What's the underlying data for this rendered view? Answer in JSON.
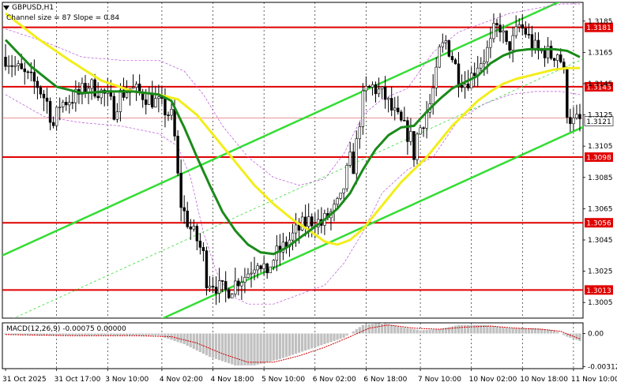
{
  "header": {
    "symbol_label": "GBPUSD,H1",
    "channel_info": "Channel size = 87 Slope = 0.84",
    "macd_label": "MACD(12,26,9) -0.00075 0.00000"
  },
  "colors": {
    "candle": "#000000",
    "level_line": "#e00000",
    "level_label_bg": "#e00000",
    "channel": "#33dd33",
    "ma_fast": "#1a8a1a",
    "ma_slow": "#f2ee1a",
    "envelope": "#b84fd6",
    "grid": "#000000",
    "macd_hist": "#c0c0c0",
    "macd_signal": "#d00000"
  },
  "chart_data": {
    "type": "candlestick",
    "symbol": "GBPUSD",
    "timeframe": "H1",
    "ylim": [
      1.2995,
      1.3197
    ],
    "y_ticks": [
      "1.3185",
      "1.3165",
      "1.3145",
      "1.3125",
      "1.3105",
      "1.3085",
      "1.3065",
      "1.3045",
      "1.3025",
      "1.3005"
    ],
    "x_ticks": [
      "31 Oct 2025",
      "31 Oct 17:00",
      "3 Nov 10:00",
      "4 Nov 02:00",
      "4 Nov 18:00",
      "5 Nov 10:00",
      "6 Nov 02:00",
      "6 Nov 18:00",
      "7 Nov 10:00",
      "10 Nov 02:00",
      "10 Nov 18:00",
      "11 Nov 10:00"
    ],
    "levels": [
      {
        "price": 1.3181,
        "label": "1.3181"
      },
      {
        "price": 1.3143,
        "label": "1.3143"
      },
      {
        "price": 1.3098,
        "label": "1.3098"
      },
      {
        "price": 1.3056,
        "label": "1.3056"
      },
      {
        "price": 1.3013,
        "label": "1.3013"
      }
    ],
    "current_price": {
      "price": 1.3121,
      "label": "1.3121"
    },
    "channel": {
      "lower": [
        [
          0,
          1.2949
        ],
        [
          185,
          1.3121
        ]
      ],
      "width": 0.0087
    },
    "close_path": [
      [
        0,
        1.3162
      ],
      [
        5,
        1.3152
      ],
      [
        10,
        1.3144
      ],
      [
        13,
        1.3133
      ],
      [
        15,
        1.3118
      ],
      [
        17,
        1.3132
      ],
      [
        20,
        1.3135
      ],
      [
        23,
        1.3138
      ],
      [
        26,
        1.3144
      ],
      [
        29,
        1.3141
      ],
      [
        32,
        1.3136
      ],
      [
        34,
        1.3128
      ],
      [
        36,
        1.3138
      ],
      [
        39,
        1.3142
      ],
      [
        41,
        1.314
      ],
      [
        43,
        1.3138
      ],
      [
        45,
        1.3136
      ],
      [
        48,
        1.3132
      ],
      [
        50,
        1.3128
      ],
      [
        52,
        1.3124
      ],
      [
        53,
        1.311
      ],
      [
        54,
        1.3085
      ],
      [
        55,
        1.3068
      ],
      [
        56,
        1.3062
      ],
      [
        58,
        1.3052
      ],
      [
        60,
        1.3045
      ],
      [
        62,
        1.3035
      ],
      [
        63,
        1.302
      ],
      [
        65,
        1.3018
      ],
      [
        67,
        1.3014
      ],
      [
        69,
        1.3012
      ],
      [
        71,
        1.3015
      ],
      [
        73,
        1.302
      ],
      [
        75,
        1.3022
      ],
      [
        77,
        1.3027
      ],
      [
        79,
        1.3033
      ],
      [
        81,
        1.3028
      ],
      [
        82,
        1.3018
      ],
      [
        83,
        1.303
      ],
      [
        85,
        1.3036
      ],
      [
        87,
        1.304
      ],
      [
        89,
        1.3045
      ],
      [
        91,
        1.305
      ],
      [
        93,
        1.3054
      ],
      [
        95,
        1.3057
      ],
      [
        97,
        1.3058
      ],
      [
        99,
        1.3055
      ],
      [
        101,
        1.306
      ],
      [
        103,
        1.3064
      ],
      [
        105,
        1.307
      ],
      [
        107,
        1.3088
      ],
      [
        108,
        1.3096
      ],
      [
        109,
        1.3092
      ],
      [
        110,
        1.3106
      ],
      [
        111,
        1.3122
      ],
      [
        112,
        1.3135
      ],
      [
        113,
        1.314
      ],
      [
        115,
        1.3143
      ],
      [
        117,
        1.314
      ],
      [
        119,
        1.3136
      ],
      [
        121,
        1.3128
      ],
      [
        123,
        1.3122
      ],
      [
        125,
        1.3116
      ],
      [
        127,
        1.311
      ],
      [
        128,
        1.31
      ],
      [
        129,
        1.3112
      ],
      [
        131,
        1.3122
      ],
      [
        133,
        1.3132
      ],
      [
        135,
        1.315
      ],
      [
        136,
        1.3165
      ],
      [
        138,
        1.3172
      ],
      [
        140,
        1.3162
      ],
      [
        142,
        1.315
      ],
      [
        144,
        1.3146
      ],
      [
        146,
        1.315
      ],
      [
        148,
        1.3158
      ],
      [
        150,
        1.3162
      ],
      [
        152,
        1.317
      ],
      [
        153,
        1.3178
      ],
      [
        155,
        1.3182
      ],
      [
        156,
        1.3175
      ],
      [
        157,
        1.3168
      ],
      [
        159,
        1.3172
      ],
      [
        161,
        1.3182
      ],
      [
        163,
        1.3178
      ],
      [
        165,
        1.317
      ],
      [
        167,
        1.3165
      ],
      [
        169,
        1.3166
      ],
      [
        171,
        1.3163
      ],
      [
        173,
        1.3165
      ],
      [
        174,
        1.316
      ],
      [
        175,
        1.315
      ],
      [
        176,
        1.3128
      ],
      [
        177,
        1.3123
      ],
      [
        178,
        1.312
      ],
      [
        179,
        1.3121
      ]
    ],
    "ma_fast_path": [
      [
        0,
        1.3173
      ],
      [
        8,
        1.3156
      ],
      [
        16,
        1.3143
      ],
      [
        24,
        1.3139
      ],
      [
        32,
        1.314
      ],
      [
        40,
        1.314
      ],
      [
        48,
        1.3138
      ],
      [
        52,
        1.3134
      ],
      [
        56,
        1.3117
      ],
      [
        60,
        1.3098
      ],
      [
        64,
        1.308
      ],
      [
        68,
        1.3063
      ],
      [
        72,
        1.3051
      ],
      [
        76,
        1.3042
      ],
      [
        80,
        1.3037
      ],
      [
        84,
        1.3036
      ],
      [
        88,
        1.304
      ],
      [
        92,
        1.3046
      ],
      [
        96,
        1.3052
      ],
      [
        100,
        1.3058
      ],
      [
        104,
        1.3065
      ],
      [
        108,
        1.3075
      ],
      [
        112,
        1.309
      ],
      [
        116,
        1.3103
      ],
      [
        120,
        1.3112
      ],
      [
        124,
        1.3117
      ],
      [
        128,
        1.3118
      ],
      [
        132,
        1.3127
      ],
      [
        136,
        1.3135
      ],
      [
        140,
        1.3142
      ],
      [
        144,
        1.3146
      ],
      [
        148,
        1.315
      ],
      [
        152,
        1.3158
      ],
      [
        156,
        1.3163
      ],
      [
        160,
        1.3166
      ],
      [
        164,
        1.3167
      ],
      [
        168,
        1.3167
      ],
      [
        172,
        1.3167
      ],
      [
        176,
        1.3166
      ],
      [
        180,
        1.3162
      ]
    ],
    "ma_slow_path": [
      [
        0,
        1.319
      ],
      [
        10,
        1.3174
      ],
      [
        20,
        1.316
      ],
      [
        30,
        1.3147
      ],
      [
        40,
        1.314
      ],
      [
        48,
        1.3138
      ],
      [
        54,
        1.3135
      ],
      [
        60,
        1.3125
      ],
      [
        66,
        1.311
      ],
      [
        72,
        1.3095
      ],
      [
        78,
        1.308
      ],
      [
        84,
        1.3068
      ],
      [
        90,
        1.3058
      ],
      [
        96,
        1.305
      ],
      [
        100,
        1.3044
      ],
      [
        104,
        1.3042
      ],
      [
        108,
        1.3045
      ],
      [
        112,
        1.3052
      ],
      [
        116,
        1.3062
      ],
      [
        120,
        1.3072
      ],
      [
        124,
        1.3082
      ],
      [
        128,
        1.309
      ],
      [
        132,
        1.3098
      ],
      [
        136,
        1.3108
      ],
      [
        140,
        1.3118
      ],
      [
        144,
        1.3126
      ],
      [
        148,
        1.3134
      ],
      [
        152,
        1.314
      ],
      [
        156,
        1.3145
      ],
      [
        160,
        1.3148
      ],
      [
        164,
        1.315
      ],
      [
        168,
        1.3152
      ],
      [
        172,
        1.3154
      ],
      [
        176,
        1.3155
      ],
      [
        180,
        1.3155
      ]
    ],
    "envelope_upper": [
      [
        0,
        1.318
      ],
      [
        12,
        1.3172
      ],
      [
        24,
        1.3162
      ],
      [
        36,
        1.316
      ],
      [
        48,
        1.316
      ],
      [
        56,
        1.3153
      ],
      [
        62,
        1.3138
      ],
      [
        68,
        1.3118
      ],
      [
        76,
        1.3098
      ],
      [
        84,
        1.3085
      ],
      [
        92,
        1.308
      ],
      [
        100,
        1.3084
      ],
      [
        106,
        1.31
      ],
      [
        112,
        1.3125
      ],
      [
        118,
        1.3135
      ],
      [
        126,
        1.3142
      ],
      [
        134,
        1.3165
      ],
      [
        142,
        1.3178
      ],
      [
        150,
        1.3184
      ],
      [
        158,
        1.319
      ],
      [
        166,
        1.3193
      ],
      [
        174,
        1.3196
      ],
      [
        180,
        1.3196
      ]
    ],
    "envelope_lower": [
      [
        0,
        1.3138
      ],
      [
        12,
        1.3124
      ],
      [
        24,
        1.312
      ],
      [
        36,
        1.3118
      ],
      [
        48,
        1.3113
      ],
      [
        54,
        1.3105
      ],
      [
        58,
        1.3085
      ],
      [
        62,
        1.305
      ],
      [
        66,
        1.3025
      ],
      [
        70,
        1.301
      ],
      [
        76,
        1.3004
      ],
      [
        84,
        1.3004
      ],
      [
        92,
        1.301
      ],
      [
        100,
        1.3016
      ],
      [
        106,
        1.303
      ],
      [
        112,
        1.305
      ],
      [
        118,
        1.3075
      ],
      [
        126,
        1.309
      ],
      [
        134,
        1.3098
      ],
      [
        142,
        1.3122
      ],
      [
        150,
        1.3132
      ],
      [
        158,
        1.3138
      ],
      [
        166,
        1.314
      ],
      [
        174,
        1.314
      ],
      [
        180,
        1.3138
      ]
    ],
    "macd": {
      "title": "MACD(12,26,9) -0.00075 0.00000",
      "ylim": [
        -0.0033,
        0.001
      ],
      "y_ticks": [
        "0.00",
        "-0.00312"
      ],
      "hist_anchors": [
        [
          0,
          -0.0001
        ],
        [
          16,
          -0.0002
        ],
        [
          32,
          -0.0002
        ],
        [
          48,
          -0.0002
        ],
        [
          56,
          -0.001
        ],
        [
          64,
          -0.0022
        ],
        [
          72,
          -0.003
        ],
        [
          78,
          -0.003
        ],
        [
          86,
          -0.0024
        ],
        [
          94,
          -0.0016
        ],
        [
          100,
          -0.001
        ],
        [
          106,
          -0.0004
        ],
        [
          112,
          0.0008
        ],
        [
          118,
          0.001
        ],
        [
          124,
          0.0006
        ],
        [
          130,
          0.0003
        ],
        [
          136,
          0.0004
        ],
        [
          142,
          0.0008
        ],
        [
          150,
          0.0008
        ],
        [
          158,
          0.0005
        ],
        [
          166,
          0.0005
        ],
        [
          172,
          0.0003
        ],
        [
          176,
          -0.0003
        ],
        [
          180,
          -0.0007
        ]
      ],
      "signal_anchors": [
        [
          0,
          -0.0001
        ],
        [
          20,
          -0.0002
        ],
        [
          40,
          -0.0002
        ],
        [
          52,
          -0.0003
        ],
        [
          60,
          -0.0009
        ],
        [
          68,
          -0.0019
        ],
        [
          76,
          -0.0027
        ],
        [
          84,
          -0.0027
        ],
        [
          92,
          -0.0021
        ],
        [
          100,
          -0.0013
        ],
        [
          108,
          -0.0003
        ],
        [
          114,
          0.0005
        ],
        [
          120,
          0.0008
        ],
        [
          128,
          0.0005
        ],
        [
          136,
          0.0004
        ],
        [
          144,
          0.0006
        ],
        [
          152,
          0.0007
        ],
        [
          160,
          0.0005
        ],
        [
          168,
          0.0004
        ],
        [
          174,
          0.0002
        ],
        [
          180,
          -0.0005
        ]
      ]
    }
  }
}
